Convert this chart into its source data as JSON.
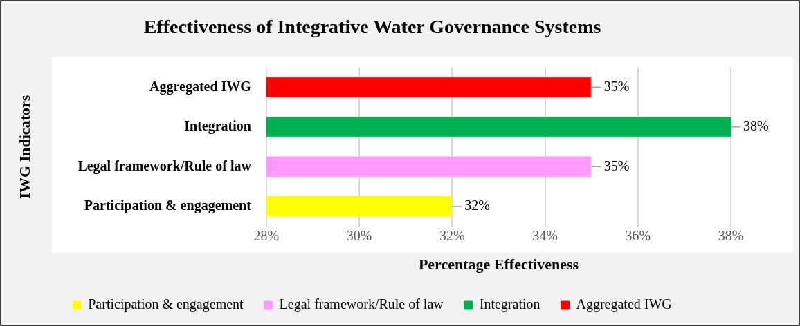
{
  "chart_data": {
    "type": "bar",
    "orientation": "horizontal",
    "title": "Effectiveness of Integrative Water Governance Systems",
    "xlabel": "Percentage Effectiveness",
    "ylabel": "IWG Indicators",
    "categories": [
      "Aggregated IWG",
      "Integration",
      "Legal framework/Rule of law",
      "Participation & engagement"
    ],
    "series": [
      {
        "name": "Participation & engagement",
        "color": "#ffff00",
        "values": [
          null,
          null,
          null,
          32
        ],
        "value_labels": [
          null,
          null,
          null,
          "32%"
        ]
      },
      {
        "name": "Legal framework/Rule of law",
        "color": "#ff99ff",
        "values": [
          null,
          null,
          35,
          null
        ],
        "value_labels": [
          null,
          null,
          "35%",
          null
        ]
      },
      {
        "name": "Integration",
        "color": "#00b050",
        "values": [
          null,
          38,
          null,
          null
        ],
        "value_labels": [
          null,
          "38%",
          null,
          null
        ]
      },
      {
        "name": "Aggregated IWG",
        "color": "#ff0000",
        "values": [
          35,
          null,
          null,
          null
        ],
        "value_labels": [
          "35%",
          null,
          null,
          null
        ]
      }
    ],
    "xlim": [
      28,
      38
    ],
    "xticks": [
      {
        "value": 28,
        "label": "28%"
      },
      {
        "value": 30,
        "label": "30%"
      },
      {
        "value": 32,
        "label": "32%"
      },
      {
        "value": 34,
        "label": "34%"
      },
      {
        "value": 36,
        "label": "36%"
      },
      {
        "value": 38,
        "label": "38%"
      }
    ],
    "grid": "x",
    "legend": "bottom"
  }
}
